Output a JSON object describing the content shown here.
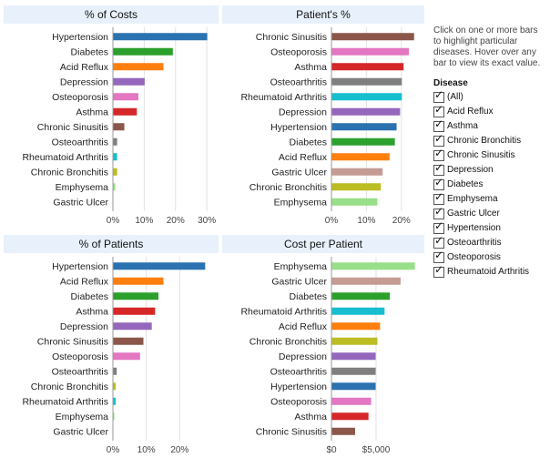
{
  "sidebar": {
    "help_text": "Click on one or more bars to highlight particular diseases. Hover over any bar to view its exact value.",
    "legend_title": "Disease",
    "legend_items": [
      "(All)",
      "Acid Reflux",
      "Asthma",
      "Chronic Bronchitis",
      "Chronic Sinusitis",
      "Depression",
      "Diabetes",
      "Emphysema",
      "Gastric Ulcer",
      "Hypertension",
      "Osteoarthritis",
      "Osteoporosis",
      "Rheumatoid Arthritis"
    ]
  },
  "colors": {
    "Hypertension": "#2b72b0",
    "Diabetes": "#2ca02c",
    "Acid Reflux": "#ff7f0e",
    "Depression": "#9467bd",
    "Osteoporosis": "#e377c2",
    "Asthma": "#d62728",
    "Chronic Sinusitis": "#8c564b",
    "Osteoarthritis": "#7f7f7f",
    "Rheumatoid Arthritis": "#17becf",
    "Chronic Bronchitis": "#bcbd22",
    "Emphysema": "#98df8a",
    "Gastric Ulcer": "#c49c94"
  },
  "chart_data": [
    {
      "id": "costs",
      "type": "bar",
      "title": "% of Costs",
      "categories": [
        "Hypertension",
        "Diabetes",
        "Acid Reflux",
        "Depression",
        "Osteoporosis",
        "Asthma",
        "Chronic Sinusitis",
        "Osteoarthritis",
        "Rheumatoid Arthritis",
        "Chronic Bronchitis",
        "Emphysema",
        "Gastric Ulcer"
      ],
      "values": [
        30,
        19,
        16,
        10,
        8,
        7.5,
        3.5,
        1.2,
        1.2,
        1.2,
        0.6,
        0
      ],
      "xlim": [
        0,
        32
      ],
      "ticks": [
        0,
        10,
        20,
        30
      ],
      "tick_labels": [
        "0%",
        "10%",
        "20%",
        "30%"
      ]
    },
    {
      "id": "patients_pct",
      "type": "bar",
      "title": "Patient's %",
      "categories": [
        "Chronic Sinusitis",
        "Osteoporosis",
        "Asthma",
        "Osteoarthritis",
        "Rheumatoid Arthritis",
        "Depression",
        "Hypertension",
        "Diabetes",
        "Acid Reflux",
        "Gastric Ulcer",
        "Chronic Bronchitis",
        "Emphysema"
      ],
      "values": [
        23.5,
        22,
        20.5,
        20,
        20,
        19.5,
        18.5,
        18,
        16.5,
        14.5,
        14,
        13
      ],
      "xlim": [
        0,
        25
      ],
      "ticks": [
        0,
        10,
        20
      ],
      "tick_labels": [
        "0%",
        "10%",
        "20%"
      ]
    },
    {
      "id": "of_patients",
      "type": "bar",
      "title": "% of Patients",
      "categories": [
        "Hypertension",
        "Acid Reflux",
        "Diabetes",
        "Asthma",
        "Depression",
        "Chronic Sinusitis",
        "Osteoporosis",
        "Osteoarthritis",
        "Chronic Bronchitis",
        "Rheumatoid Arthritis",
        "Emphysema",
        "Gastric Ulcer"
      ],
      "values": [
        27.5,
        15,
        13.5,
        12.5,
        11.5,
        9,
        8,
        1,
        0.7,
        0.7,
        0.3,
        0
      ],
      "xlim": [
        0,
        30
      ],
      "ticks": [
        0,
        10,
        20
      ],
      "tick_labels": [
        "0%",
        "10%",
        "20%"
      ]
    },
    {
      "id": "cost_per_patient",
      "type": "bar",
      "title": "Cost per Patient",
      "categories": [
        "Emphysema",
        "Gastric Ulcer",
        "Diabetes",
        "Rheumatoid Arthritis",
        "Acid Reflux",
        "Chronic Bronchitis",
        "Depression",
        "Osteoarthritis",
        "Hypertension",
        "Osteoporosis",
        "Asthma",
        "Chronic Sinusitis"
      ],
      "values": [
        9300,
        7700,
        6500,
        5900,
        5400,
        5100,
        4900,
        4900,
        4900,
        4400,
        4100,
        2600
      ],
      "xlim": [
        0,
        9800
      ],
      "ticks": [
        0,
        5000
      ],
      "tick_labels": [
        "$0",
        "$5,000"
      ]
    }
  ]
}
